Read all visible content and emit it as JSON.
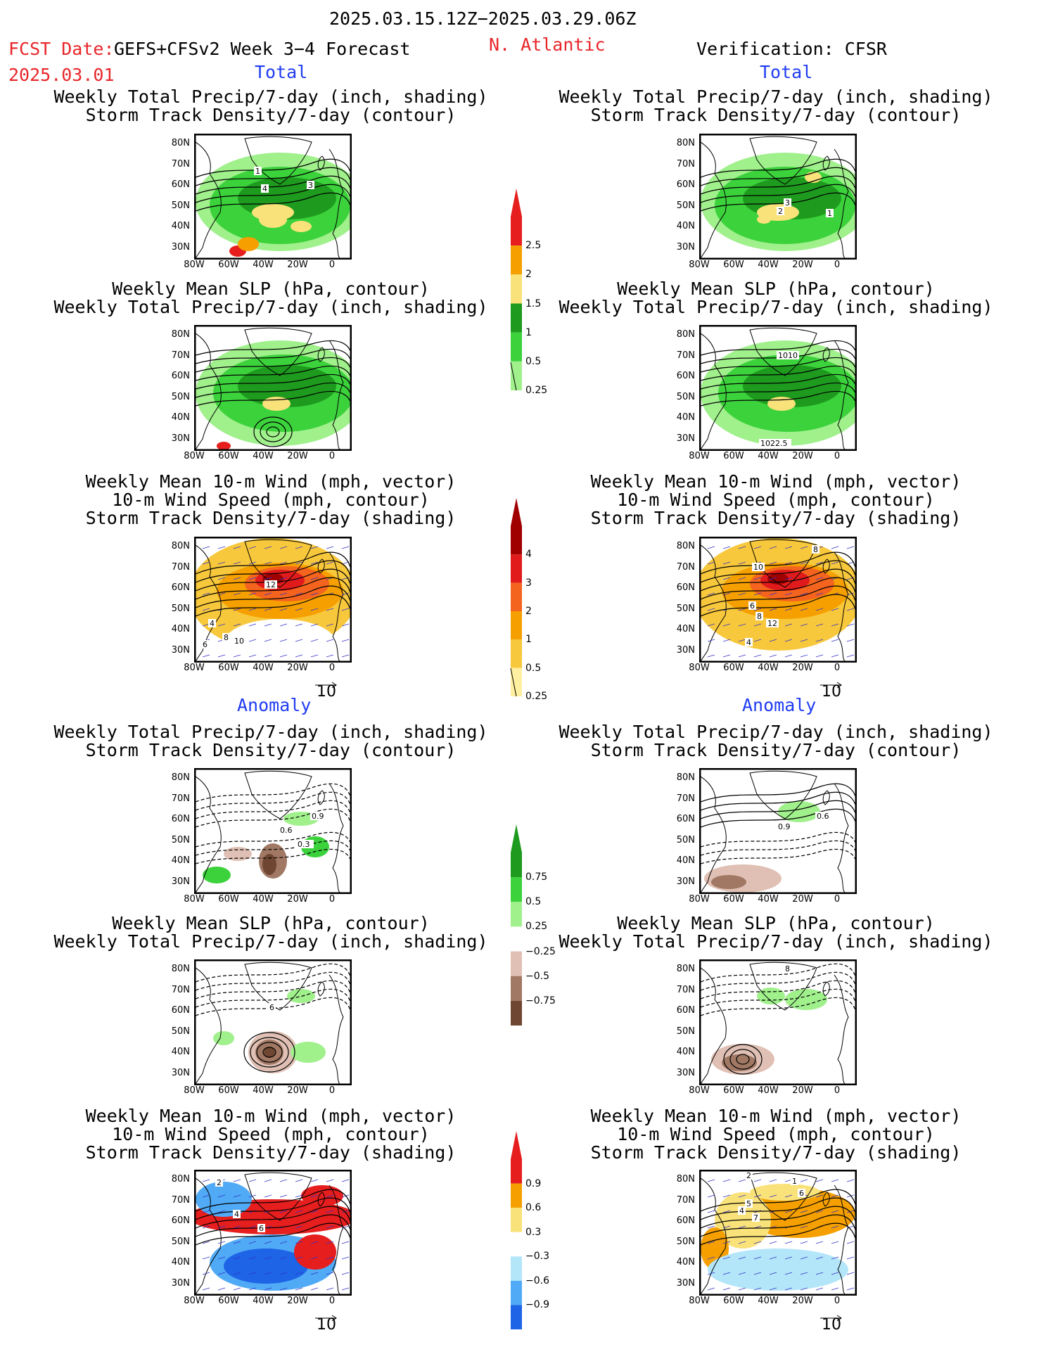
{
  "header": {
    "date_range": "2025.03.15.12Z−2025.03.29.06Z",
    "fcst_label": "FCST Date:",
    "fcst_date": "2025.03.01",
    "model": "GEFS+CFSv2 Week 3−4 Forecast",
    "region": "N. Atlantic",
    "verification": "Verification: CFSR"
  },
  "sections": {
    "total": "Total",
    "anomaly": "Anomaly"
  },
  "titles": {
    "precip_track": [
      "Weekly Total Precip/7-day (inch, shading)",
      "Storm Track Density/7-day (contour)"
    ],
    "slp_precip": [
      "Weekly Mean SLP (hPa, contour)",
      "Weekly Total Precip/7-day (inch, shading)"
    ],
    "wind_track": [
      "Weekly Mean 10-m Wind (mph, vector)",
      "10-m Wind Speed (mph, contour)",
      "Storm Track Density/7-day (shading)"
    ]
  },
  "axes": {
    "lat_labels": [
      "80N",
      "70N",
      "60N",
      "50N",
      "40N",
      "30N"
    ],
    "lon_labels": [
      "80W",
      "60W",
      "40W",
      "20W",
      "0"
    ]
  },
  "vector_ref": "10",
  "colorbars": {
    "precip_total": {
      "labels": [
        "2.5",
        "2",
        "1.5",
        "1",
        "0.5",
        "0.25"
      ],
      "colors": [
        "#e61e1e",
        "#f5a000",
        "#fae27a",
        "#1e9b1e",
        "#3cd23c",
        "#a0f08c"
      ]
    },
    "track_total": {
      "labels": [
        "4",
        "3",
        "2",
        "1",
        "0.5",
        "0.25"
      ],
      "colors": [
        "#a00000",
        "#e11b1b",
        "#f4641e",
        "#f5a000",
        "#f8c83c",
        "#fef0a0"
      ]
    },
    "precip_anom": {
      "labels": [
        "0.75",
        "0.5",
        "0.25",
        "−0.25",
        "−0.5",
        "−0.75"
      ],
      "colors": [
        "#1e9b1e",
        "#3cd23c",
        "#a0f08c",
        "#ffffff",
        "#e0c0b4",
        "#a07864",
        "#6e4632"
      ]
    },
    "track_anom": {
      "labels": [
        "0.9",
        "0.6",
        "0.3",
        "−0.3",
        "−0.6",
        "−0.9"
      ],
      "colors": [
        "#e61e1e",
        "#f5a000",
        "#fae27a",
        "#ffffff",
        "#b4e6fa",
        "#50aaf5",
        "#1e64e6"
      ]
    }
  },
  "contour_labels": {
    "p1": [
      "3",
      "2",
      "1"
    ],
    "p2": [
      "1010",
      "1022.5"
    ],
    "p3": [
      "10",
      "6",
      "8",
      "12",
      "4",
      "8"
    ],
    "p4": [
      "1",
      "4",
      "3"
    ],
    "p6": [
      "12",
      "4",
      "8",
      "10",
      "6"
    ],
    "p7": [
      "0.9",
      "0.6"
    ],
    "p8": [
      "8"
    ],
    "p9": [
      "2",
      "1",
      "6",
      "5",
      "4",
      "7"
    ],
    "p10": [
      "0.9",
      "0.6",
      "0.3"
    ],
    "p11": [
      "6"
    ],
    "p12": [
      "2",
      "4",
      "6"
    ]
  }
}
